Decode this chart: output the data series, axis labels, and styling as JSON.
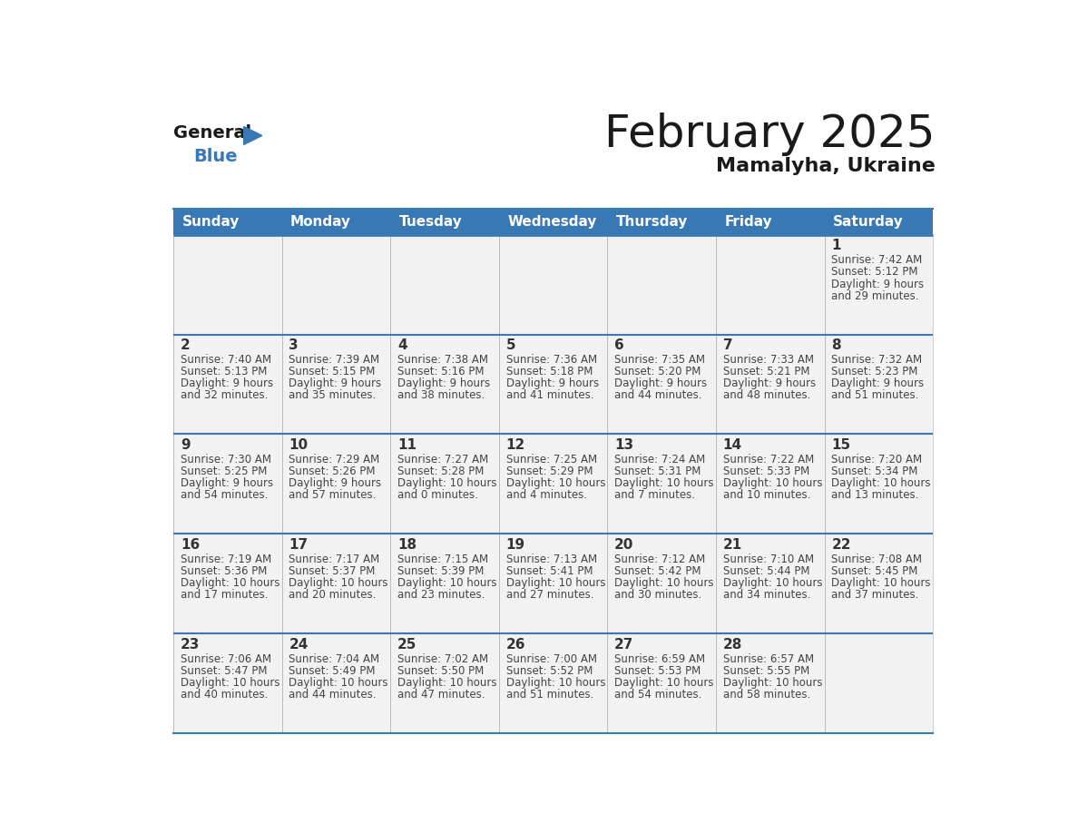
{
  "title": "February 2025",
  "subtitle": "Mamalyha, Ukraine",
  "header_bg": "#3878b4",
  "header_text": "#ffffff",
  "cell_bg": "#f2f2f2",
  "cell_bg_white": "#ffffff",
  "day_names": [
    "Sunday",
    "Monday",
    "Tuesday",
    "Wednesday",
    "Thursday",
    "Friday",
    "Saturday"
  ],
  "separator_color": "#3878b4",
  "day_number_color": "#333333",
  "info_color": "#444444",
  "grid_line_color": "#bbbbbb",
  "title_color": "#1a1a1a",
  "subtitle_color": "#1a1a1a",
  "logo_general_color": "#1a1a1a",
  "logo_blue_color": "#3878b4",
  "logo_triangle_color": "#3878b4",
  "calendar": [
    [
      null,
      null,
      null,
      null,
      null,
      null,
      {
        "day": 1,
        "sunrise": "7:42 AM",
        "sunset": "5:12 PM",
        "daylight": "9 hours\nand 29 minutes."
      }
    ],
    [
      {
        "day": 2,
        "sunrise": "7:40 AM",
        "sunset": "5:13 PM",
        "daylight": "9 hours\nand 32 minutes."
      },
      {
        "day": 3,
        "sunrise": "7:39 AM",
        "sunset": "5:15 PM",
        "daylight": "9 hours\nand 35 minutes."
      },
      {
        "day": 4,
        "sunrise": "7:38 AM",
        "sunset": "5:16 PM",
        "daylight": "9 hours\nand 38 minutes."
      },
      {
        "day": 5,
        "sunrise": "7:36 AM",
        "sunset": "5:18 PM",
        "daylight": "9 hours\nand 41 minutes."
      },
      {
        "day": 6,
        "sunrise": "7:35 AM",
        "sunset": "5:20 PM",
        "daylight": "9 hours\nand 44 minutes."
      },
      {
        "day": 7,
        "sunrise": "7:33 AM",
        "sunset": "5:21 PM",
        "daylight": "9 hours\nand 48 minutes."
      },
      {
        "day": 8,
        "sunrise": "7:32 AM",
        "sunset": "5:23 PM",
        "daylight": "9 hours\nand 51 minutes."
      }
    ],
    [
      {
        "day": 9,
        "sunrise": "7:30 AM",
        "sunset": "5:25 PM",
        "daylight": "9 hours\nand 54 minutes."
      },
      {
        "day": 10,
        "sunrise": "7:29 AM",
        "sunset": "5:26 PM",
        "daylight": "9 hours\nand 57 minutes."
      },
      {
        "day": 11,
        "sunrise": "7:27 AM",
        "sunset": "5:28 PM",
        "daylight": "10 hours\nand 0 minutes."
      },
      {
        "day": 12,
        "sunrise": "7:25 AM",
        "sunset": "5:29 PM",
        "daylight": "10 hours\nand 4 minutes."
      },
      {
        "day": 13,
        "sunrise": "7:24 AM",
        "sunset": "5:31 PM",
        "daylight": "10 hours\nand 7 minutes."
      },
      {
        "day": 14,
        "sunrise": "7:22 AM",
        "sunset": "5:33 PM",
        "daylight": "10 hours\nand 10 minutes."
      },
      {
        "day": 15,
        "sunrise": "7:20 AM",
        "sunset": "5:34 PM",
        "daylight": "10 hours\nand 13 minutes."
      }
    ],
    [
      {
        "day": 16,
        "sunrise": "7:19 AM",
        "sunset": "5:36 PM",
        "daylight": "10 hours\nand 17 minutes."
      },
      {
        "day": 17,
        "sunrise": "7:17 AM",
        "sunset": "5:37 PM",
        "daylight": "10 hours\nand 20 minutes."
      },
      {
        "day": 18,
        "sunrise": "7:15 AM",
        "sunset": "5:39 PM",
        "daylight": "10 hours\nand 23 minutes."
      },
      {
        "day": 19,
        "sunrise": "7:13 AM",
        "sunset": "5:41 PM",
        "daylight": "10 hours\nand 27 minutes."
      },
      {
        "day": 20,
        "sunrise": "7:12 AM",
        "sunset": "5:42 PM",
        "daylight": "10 hours\nand 30 minutes."
      },
      {
        "day": 21,
        "sunrise": "7:10 AM",
        "sunset": "5:44 PM",
        "daylight": "10 hours\nand 34 minutes."
      },
      {
        "day": 22,
        "sunrise": "7:08 AM",
        "sunset": "5:45 PM",
        "daylight": "10 hours\nand 37 minutes."
      }
    ],
    [
      {
        "day": 23,
        "sunrise": "7:06 AM",
        "sunset": "5:47 PM",
        "daylight": "10 hours\nand 40 minutes."
      },
      {
        "day": 24,
        "sunrise": "7:04 AM",
        "sunset": "5:49 PM",
        "daylight": "10 hours\nand 44 minutes."
      },
      {
        "day": 25,
        "sunrise": "7:02 AM",
        "sunset": "5:50 PM",
        "daylight": "10 hours\nand 47 minutes."
      },
      {
        "day": 26,
        "sunrise": "7:00 AM",
        "sunset": "5:52 PM",
        "daylight": "10 hours\nand 51 minutes."
      },
      {
        "day": 27,
        "sunrise": "6:59 AM",
        "sunset": "5:53 PM",
        "daylight": "10 hours\nand 54 minutes."
      },
      {
        "day": 28,
        "sunrise": "6:57 AM",
        "sunset": "5:55 PM",
        "daylight": "10 hours\nand 58 minutes."
      },
      null
    ]
  ]
}
